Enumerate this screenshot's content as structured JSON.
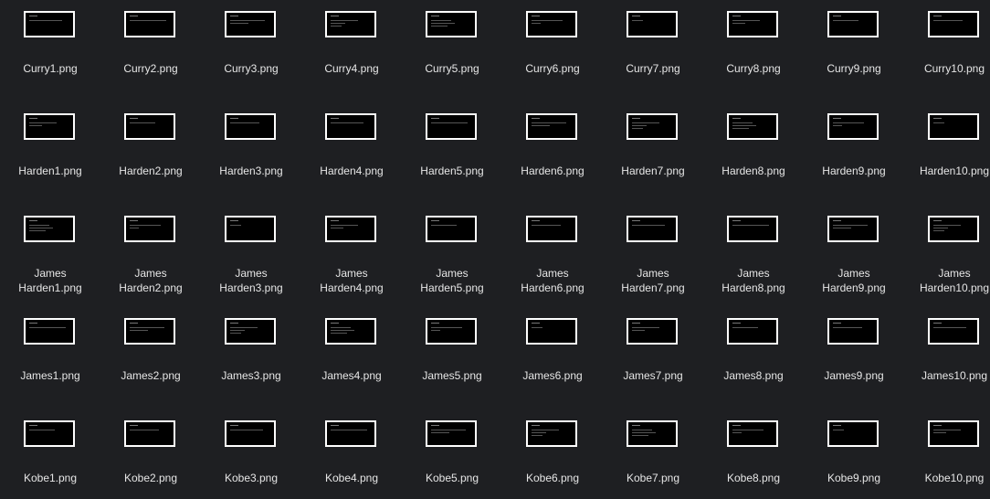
{
  "files": [
    {
      "name": "Curry1.png"
    },
    {
      "name": "Curry2.png"
    },
    {
      "name": "Curry3.png"
    },
    {
      "name": "Curry4.png"
    },
    {
      "name": "Curry5.png"
    },
    {
      "name": "Curry6.png"
    },
    {
      "name": "Curry7.png"
    },
    {
      "name": "Curry8.png"
    },
    {
      "name": "Curry9.png"
    },
    {
      "name": "Curry10.png"
    },
    {
      "name": "Harden1.png"
    },
    {
      "name": "Harden2.png"
    },
    {
      "name": "Harden3.png"
    },
    {
      "name": "Harden4.png"
    },
    {
      "name": "Harden5.png"
    },
    {
      "name": "Harden6.png"
    },
    {
      "name": "Harden7.png"
    },
    {
      "name": "Harden8.png"
    },
    {
      "name": "Harden9.png"
    },
    {
      "name": "Harden10.png"
    },
    {
      "name": "James\nHarden1.png"
    },
    {
      "name": "James\nHarden2.png"
    },
    {
      "name": "James\nHarden3.png"
    },
    {
      "name": "James\nHarden4.png"
    },
    {
      "name": "James\nHarden5.png"
    },
    {
      "name": "James\nHarden6.png"
    },
    {
      "name": "James\nHarden7.png"
    },
    {
      "name": "James\nHarden8.png"
    },
    {
      "name": "James\nHarden9.png"
    },
    {
      "name": "James\nHarden10.png"
    },
    {
      "name": "James1.png"
    },
    {
      "name": "James2.png"
    },
    {
      "name": "James3.png"
    },
    {
      "name": "James4.png"
    },
    {
      "name": "James5.png"
    },
    {
      "name": "James6.png"
    },
    {
      "name": "James7.png"
    },
    {
      "name": "James8.png"
    },
    {
      "name": "James9.png"
    },
    {
      "name": "James10.png"
    },
    {
      "name": "Kobe1.png"
    },
    {
      "name": "Kobe2.png"
    },
    {
      "name": "Kobe3.png"
    },
    {
      "name": "Kobe4.png"
    },
    {
      "name": "Kobe5.png"
    },
    {
      "name": "Kobe6.png"
    },
    {
      "name": "Kobe7.png"
    },
    {
      "name": "Kobe8.png"
    },
    {
      "name": "Kobe9.png"
    },
    {
      "name": "Kobe10.png"
    }
  ]
}
